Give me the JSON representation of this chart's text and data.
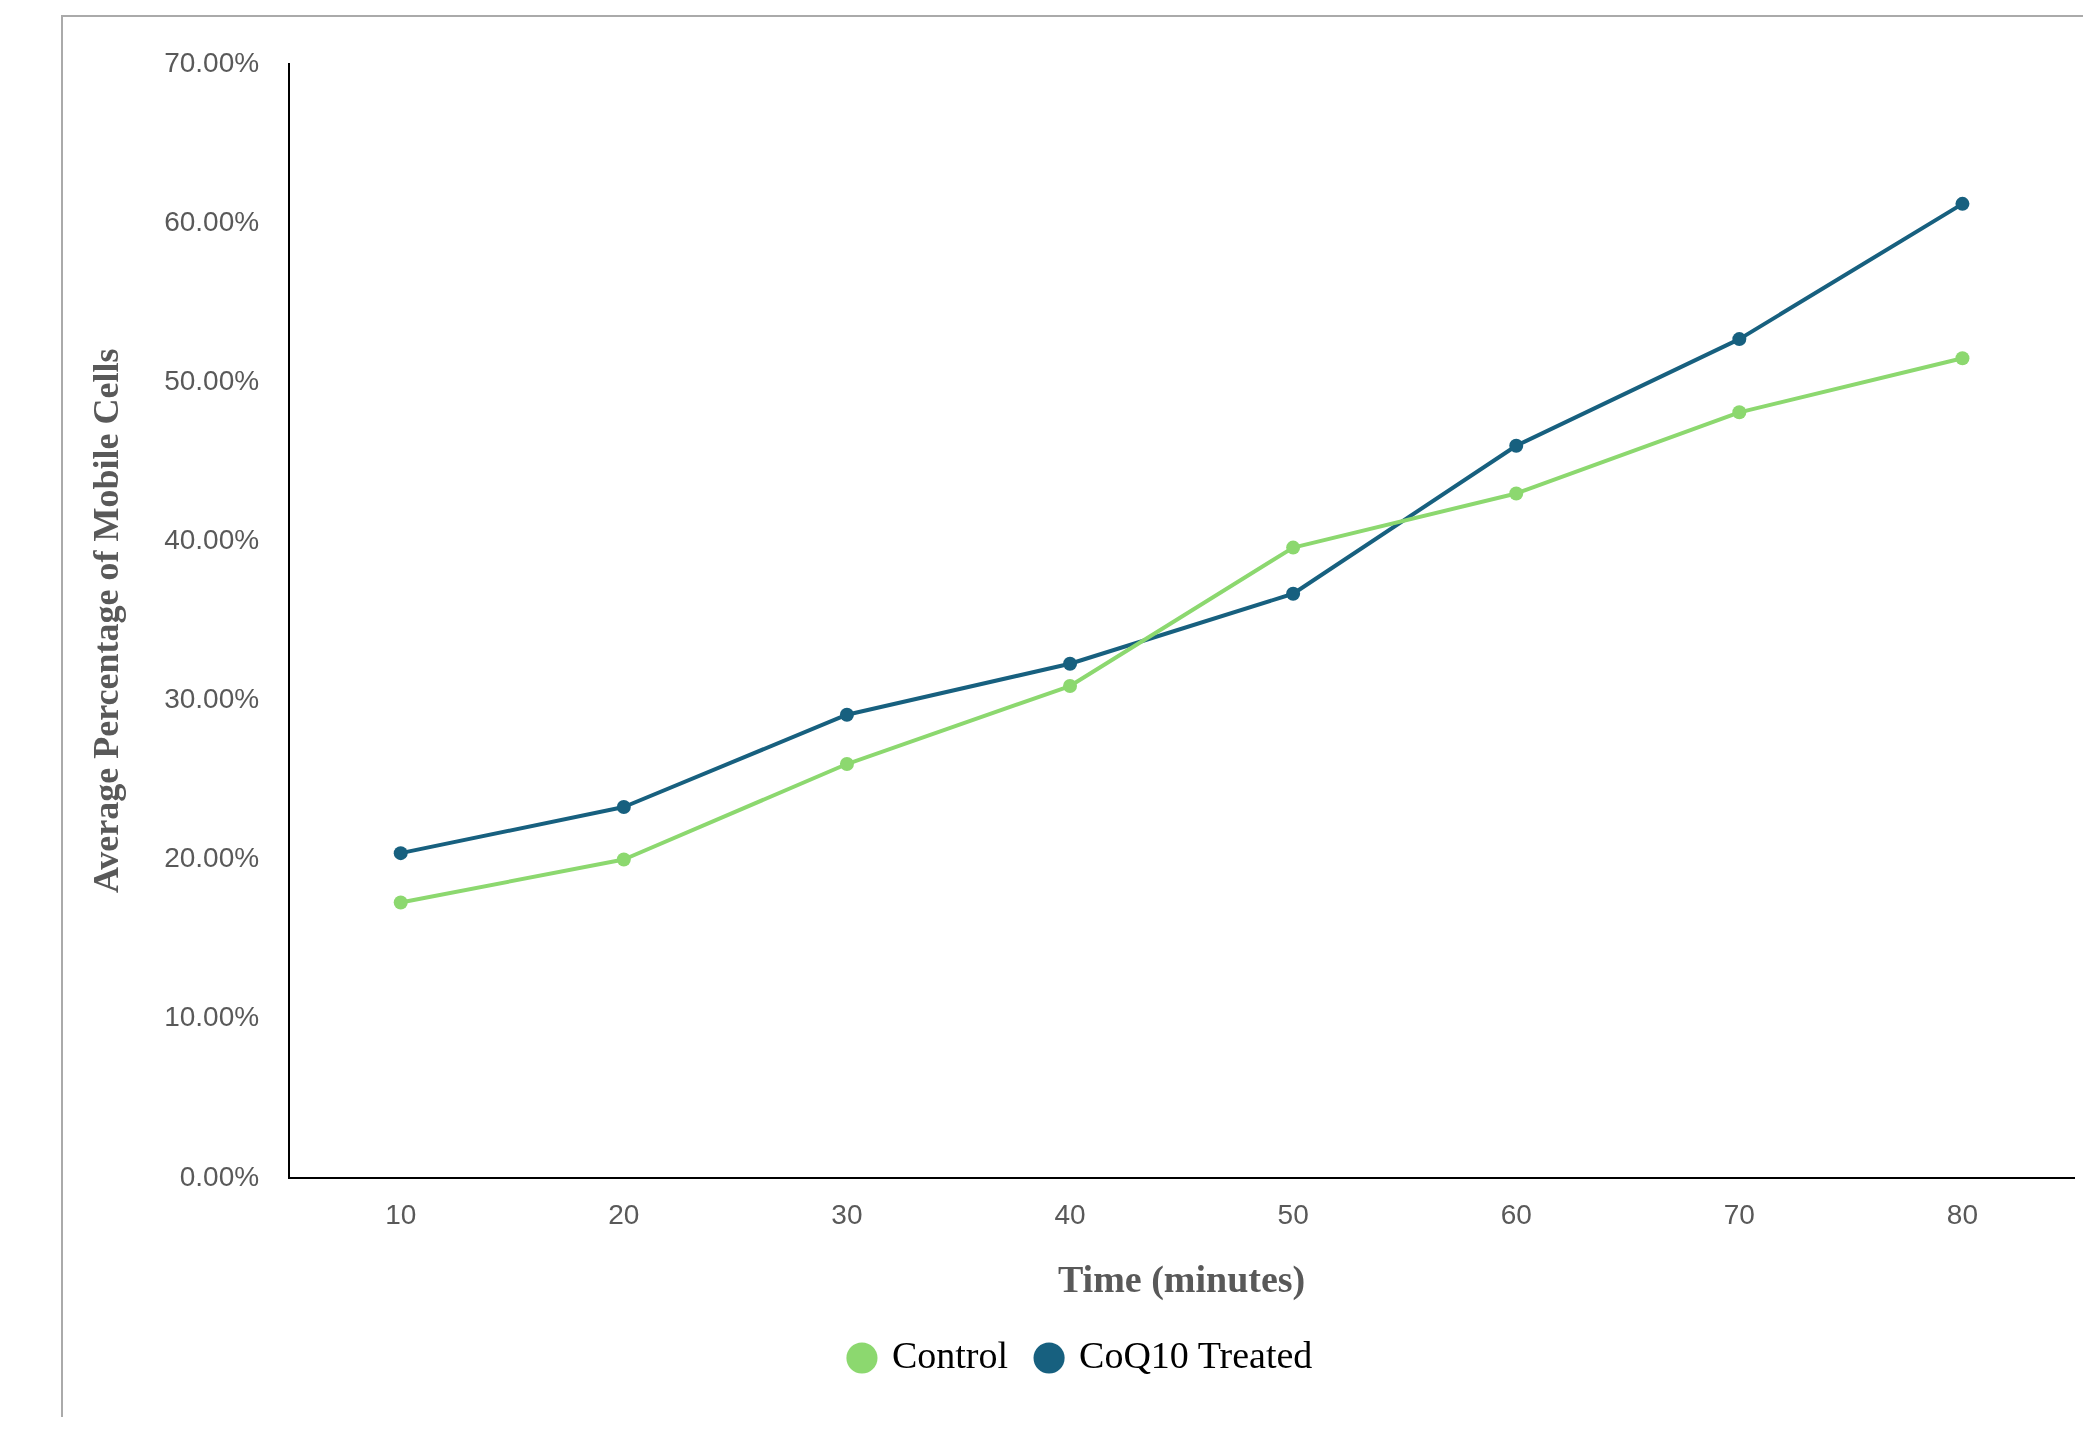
{
  "chart_data": {
    "type": "line",
    "xlabel": "Time (minutes)",
    "ylabel": "Average Percentage of Mobile Cells",
    "categories": [
      "10",
      "20",
      "30",
      "40",
      "50",
      "60",
      "70",
      "80"
    ],
    "series": [
      {
        "name": "Control",
        "color": "#8cd86f",
        "values": [
          17.3,
          20.0,
          26.0,
          30.9,
          39.6,
          43.0,
          48.1,
          51.5
        ]
      },
      {
        "name": "CoQ10 Treated",
        "color": "#17607f",
        "values": [
          20.4,
          23.3,
          29.1,
          32.3,
          36.7,
          46.0,
          52.7,
          61.2
        ]
      }
    ],
    "ylim": [
      0,
      70
    ],
    "yticks": [
      {
        "value": 0,
        "label": "0.00%"
      },
      {
        "value": 10,
        "label": "10.00%"
      },
      {
        "value": 20,
        "label": "20.00%"
      },
      {
        "value": 30,
        "label": "30.00%"
      },
      {
        "value": 40,
        "label": "40.00%"
      },
      {
        "value": 50,
        "label": "50.00%"
      },
      {
        "value": 60,
        "label": "60.00%"
      },
      {
        "value": 70,
        "label": "70.00%"
      }
    ],
    "grid": false,
    "legend": "bottom",
    "marker": "circle",
    "line_style": "solid"
  }
}
